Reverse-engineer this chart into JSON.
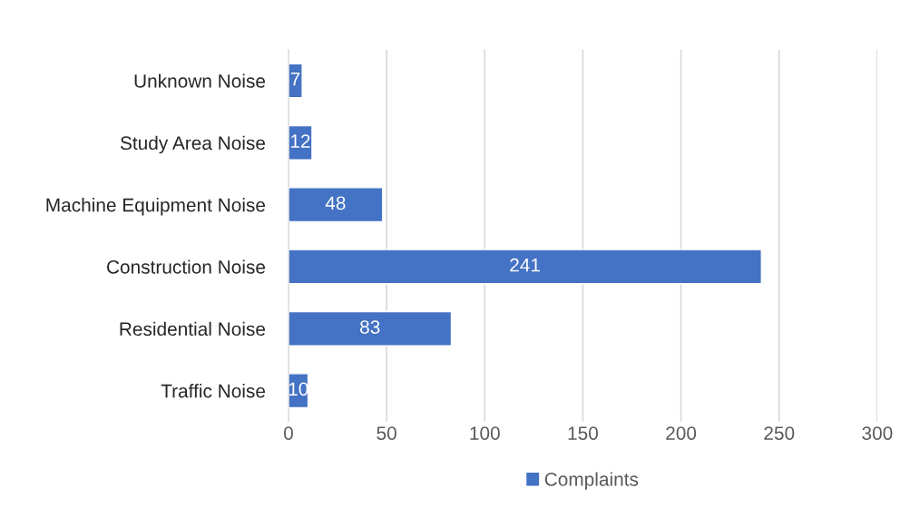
{
  "chart_data": {
    "type": "bar",
    "orientation": "horizontal",
    "categories": [
      "Unknown Noise",
      "Study Area Noise",
      "Machine Equipment Noise",
      "Construction Noise",
      "Residential Noise",
      "Traffic Noise"
    ],
    "series": [
      {
        "name": "Complaints",
        "color": "#4472c4",
        "values": [
          7,
          12,
          48,
          241,
          83,
          10
        ]
      }
    ],
    "xlim": [
      0,
      300
    ],
    "xticks": [
      0,
      50,
      100,
      150,
      200,
      250,
      300
    ],
    "grid": "x",
    "legend": "bottom",
    "data_labels": true
  }
}
